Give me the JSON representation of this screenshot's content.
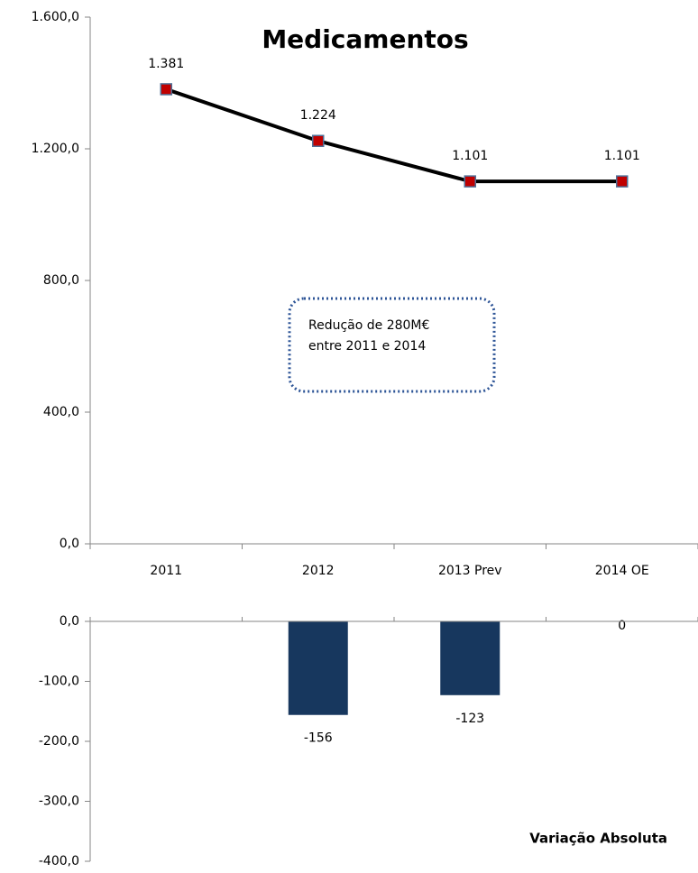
{
  "chart_data": [
    {
      "type": "line",
      "title": "Medicamentos",
      "categories": [
        "2011",
        "2012",
        "2013 Prev",
        "2014 OE"
      ],
      "values": [
        1381,
        1224,
        1101,
        1101
      ],
      "value_labels": [
        "1.381",
        "1.224",
        "1.101",
        "1.101"
      ],
      "color": "#000000",
      "marker_color": "#c00000",
      "ylim": [
        0,
        1600
      ],
      "yticks": [
        {
          "value": 0,
          "label": "0,0"
        },
        {
          "value": 400,
          "label": "400,0"
        },
        {
          "value": 800,
          "label": "800,0"
        },
        {
          "value": 1200,
          "label": "1.200,0"
        },
        {
          "value": 1600,
          "label": "1.600,0"
        }
      ],
      "annotation": [
        "Redução de 280M€",
        "entre 2011 e 2014"
      ]
    },
    {
      "type": "bar",
      "title": "Variação Absoluta",
      "categories": [
        null,
        null,
        null,
        null
      ],
      "values": [
        null,
        -156,
        -123,
        0
      ],
      "color": "#17375e",
      "ylim": [
        -400,
        0
      ],
      "yticks": [
        {
          "value": 0,
          "label": "0,0"
        },
        {
          "value": -100,
          "label": "-100,0"
        },
        {
          "value": -200,
          "label": "-200,0"
        },
        {
          "value": -300,
          "label": "-300,0"
        },
        {
          "value": -400,
          "label": "-400,0"
        }
      ]
    }
  ]
}
